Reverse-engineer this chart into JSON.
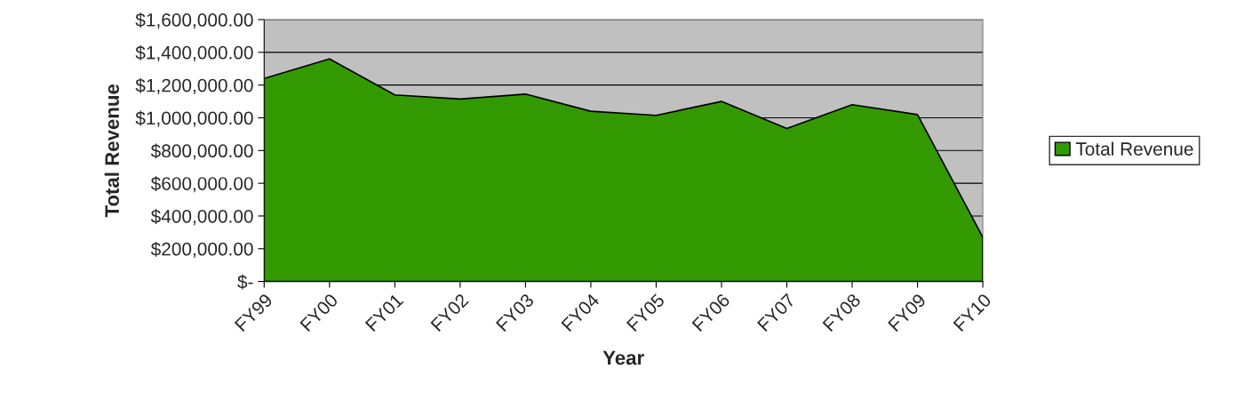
{
  "chart_data": {
    "type": "area",
    "xlabel": "Year",
    "ylabel": "Total Revenue",
    "categories": [
      "FY99",
      "FY00",
      "FY01",
      "FY02",
      "FY03",
      "FY04",
      "FY05",
      "FY06",
      "FY07",
      "FY08",
      "FY09",
      "FY10"
    ],
    "series": [
      {
        "name": "Total Revenue",
        "color": "#339900",
        "values": [
          1240000,
          1360000,
          1140000,
          1115000,
          1145000,
          1040000,
          1015000,
          1100000,
          935000,
          1080000,
          1020000,
          270000
        ]
      }
    ],
    "ylim": [
      0,
      1600000
    ],
    "yticks": [
      {
        "value": 0,
        "label": "$-"
      },
      {
        "value": 200000,
        "label": "$200,000.00"
      },
      {
        "value": 400000,
        "label": "$400,000.00"
      },
      {
        "value": 600000,
        "label": "$600,000.00"
      },
      {
        "value": 800000,
        "label": "$800,000.00"
      },
      {
        "value": 1000000,
        "label": "$1,000,000.00"
      },
      {
        "value": 1200000,
        "label": "$1,200,000.00"
      },
      {
        "value": 1400000,
        "label": "$1,400,000.00"
      },
      {
        "value": 1600000,
        "label": "$1,600,000.00"
      }
    ],
    "grid": "y",
    "legend": "right"
  }
}
